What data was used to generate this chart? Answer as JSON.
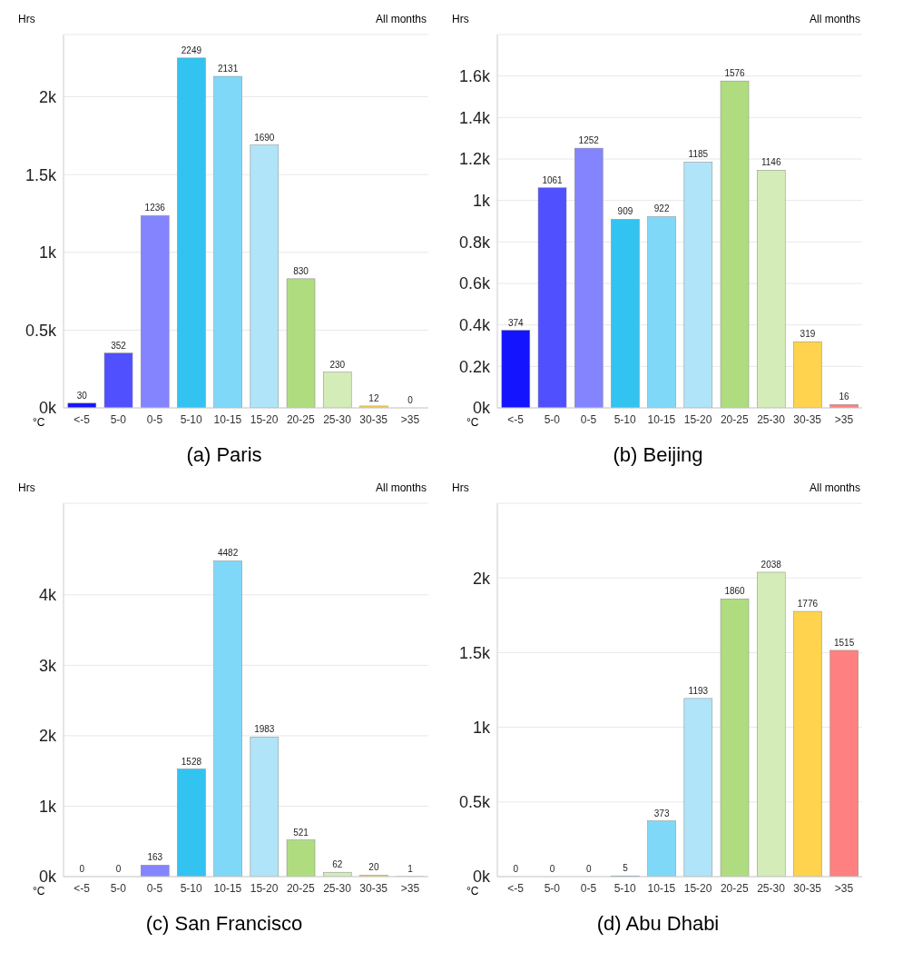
{
  "chart_data": [
    {
      "type": "bar",
      "title": "(a) Paris",
      "xlabel": "°C",
      "ylabel": "Hrs",
      "annotations": [
        "All months"
      ],
      "categories": [
        "<-5",
        "5-0",
        "0-5",
        "5-10",
        "10-15",
        "15-20",
        "20-25",
        "25-30",
        "30-35",
        ">35"
      ],
      "values": [
        30,
        352,
        1236,
        2249,
        2131,
        1690,
        830,
        230,
        12,
        0
      ],
      "colors": [
        "#1414ff",
        "#5050ff",
        "#8484ff",
        "#33c3f0",
        "#80d8f8",
        "#b0e4f8",
        "#b0dc80",
        "#d4ecb8",
        "#ffd34d",
        "#ff8080"
      ],
      "ylim": [
        0,
        2400
      ],
      "yticks": [
        {
          "value": 0,
          "label": "0k"
        },
        {
          "value": 500,
          "label": "0.5k"
        },
        {
          "value": 1000,
          "label": "1k"
        },
        {
          "value": 1500,
          "label": "1.5k"
        },
        {
          "value": 2000,
          "label": "2k"
        }
      ],
      "grid": "y",
      "data_labels": true
    },
    {
      "type": "bar",
      "title": "(b) Beijing",
      "xlabel": "°C",
      "ylabel": "Hrs",
      "annotations": [
        "All months"
      ],
      "categories": [
        "<-5",
        "5-0",
        "0-5",
        "5-10",
        "10-15",
        "15-20",
        "20-25",
        "25-30",
        "30-35",
        ">35"
      ],
      "values": [
        374,
        1061,
        1252,
        909,
        922,
        1185,
        1576,
        1146,
        319,
        16
      ],
      "colors": [
        "#1414ff",
        "#5050ff",
        "#8484ff",
        "#33c3f0",
        "#80d8f8",
        "#b0e4f8",
        "#b0dc80",
        "#d4ecb8",
        "#ffd34d",
        "#ff8080"
      ],
      "ylim": [
        0,
        1800
      ],
      "yticks": [
        {
          "value": 0,
          "label": "0k"
        },
        {
          "value": 200,
          "label": "0.2k"
        },
        {
          "value": 400,
          "label": "0.4k"
        },
        {
          "value": 600,
          "label": "0.6k"
        },
        {
          "value": 800,
          "label": "0.8k"
        },
        {
          "value": 1000,
          "label": "1k"
        },
        {
          "value": 1200,
          "label": "1.2k"
        },
        {
          "value": 1400,
          "label": "1.4k"
        },
        {
          "value": 1600,
          "label": "1.6k"
        }
      ],
      "grid": "y",
      "data_labels": true
    },
    {
      "type": "bar",
      "title": "(c) San Francisco",
      "xlabel": "°C",
      "ylabel": "Hrs",
      "annotations": [
        "All months"
      ],
      "categories": [
        "<-5",
        "5-0",
        "0-5",
        "5-10",
        "10-15",
        "15-20",
        "20-25",
        "25-30",
        "30-35",
        ">35"
      ],
      "values": [
        0,
        0,
        163,
        1528,
        4482,
        1983,
        521,
        62,
        20,
        1
      ],
      "colors": [
        "#1414ff",
        "#5050ff",
        "#8484ff",
        "#33c3f0",
        "#80d8f8",
        "#b0e4f8",
        "#b0dc80",
        "#d4ecb8",
        "#ffd34d",
        "#ff8080"
      ],
      "ylim": [
        0,
        5300
      ],
      "yticks": [
        {
          "value": 0,
          "label": "0k"
        },
        {
          "value": 1000,
          "label": "1k"
        },
        {
          "value": 2000,
          "label": "2k"
        },
        {
          "value": 3000,
          "label": "3k"
        },
        {
          "value": 4000,
          "label": "4k"
        }
      ],
      "grid": "y",
      "data_labels": true
    },
    {
      "type": "bar",
      "title": "(d) Abu Dhabi",
      "xlabel": "°C",
      "ylabel": "Hrs",
      "annotations": [
        "All months"
      ],
      "categories": [
        "<-5",
        "5-0",
        "0-5",
        "5-10",
        "10-15",
        "15-20",
        "20-25",
        "25-30",
        "30-35",
        ">35"
      ],
      "values": [
        0,
        0,
        0,
        5,
        373,
        1193,
        1860,
        2038,
        1776,
        1515
      ],
      "colors": [
        "#1414ff",
        "#5050ff",
        "#8484ff",
        "#33c3f0",
        "#80d8f8",
        "#b0e4f8",
        "#b0dc80",
        "#d4ecb8",
        "#ffd34d",
        "#ff8080"
      ],
      "ylim": [
        0,
        2500
      ],
      "yticks": [
        {
          "value": 0,
          "label": "0k"
        },
        {
          "value": 500,
          "label": "0.5k"
        },
        {
          "value": 1000,
          "label": "1k"
        },
        {
          "value": 1500,
          "label": "1.5k"
        },
        {
          "value": 2000,
          "label": "2k"
        }
      ],
      "grid": "y",
      "data_labels": true
    }
  ]
}
